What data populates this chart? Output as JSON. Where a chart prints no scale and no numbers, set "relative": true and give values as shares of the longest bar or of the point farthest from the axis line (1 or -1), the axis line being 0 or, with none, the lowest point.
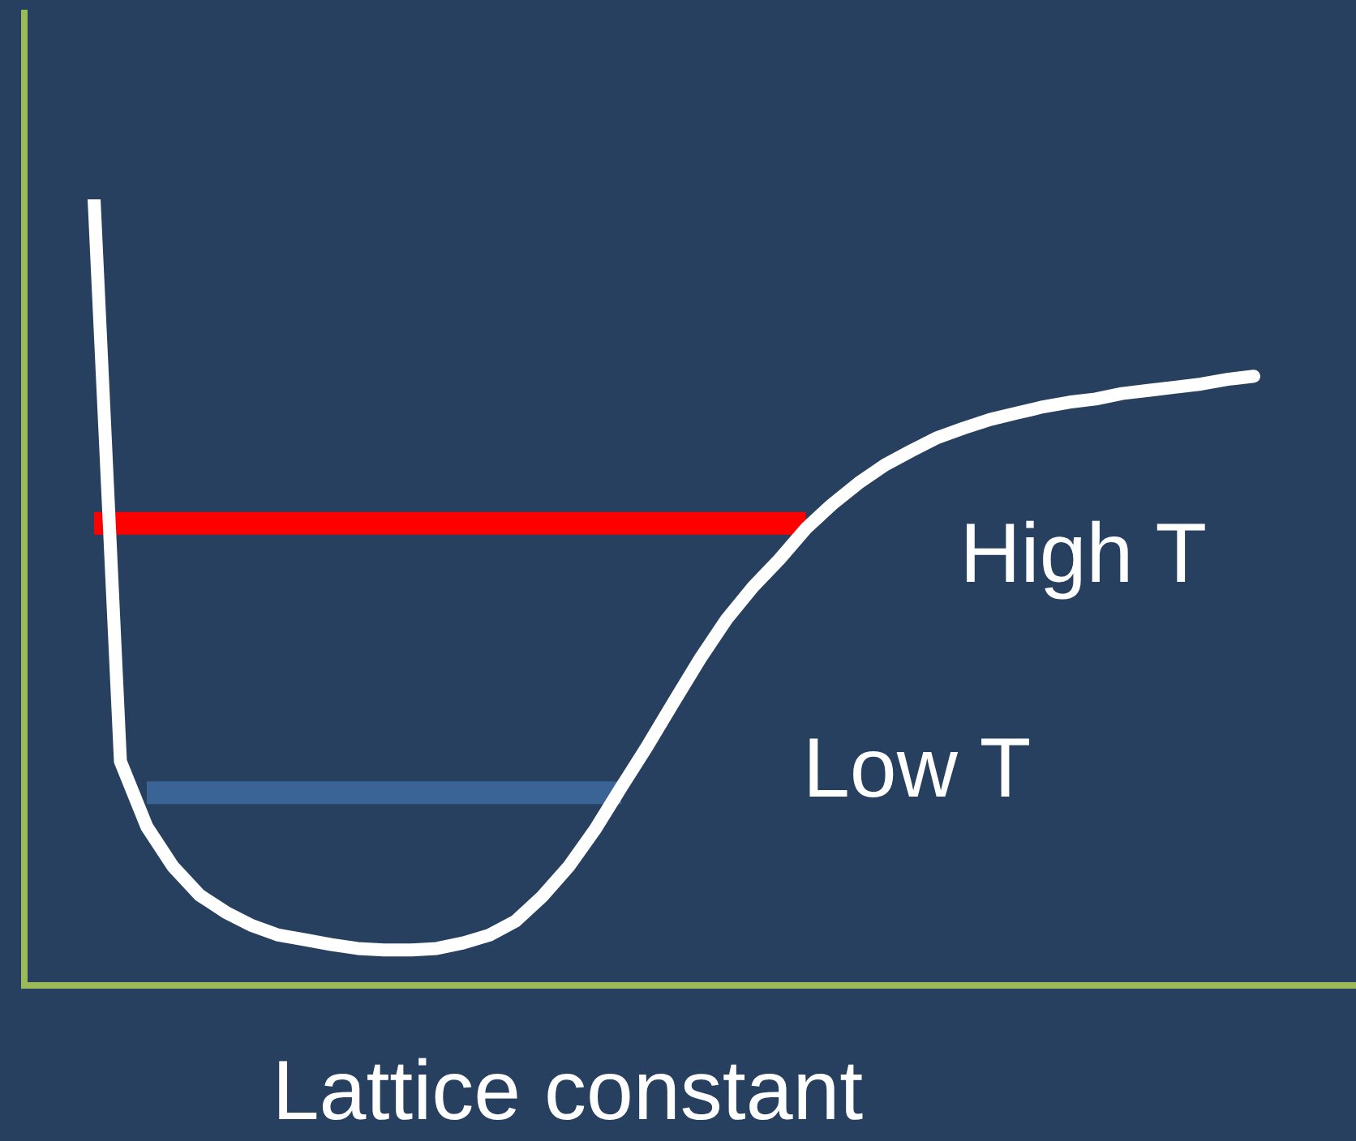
{
  "chart_data": {
    "type": "line",
    "relative": true,
    "xlabel": "Lattice constant",
    "categories": [
      null,
      null,
      null,
      null,
      null,
      null,
      null,
      null,
      null,
      null,
      null,
      null,
      null,
      null,
      null,
      null,
      null,
      null,
      null,
      null,
      null,
      null,
      null,
      null,
      null,
      null,
      null,
      null,
      null,
      null,
      null,
      null,
      null,
      null,
      null,
      null,
      null,
      null,
      null,
      null,
      null,
      null,
      null,
      null,
      null
    ],
    "series": [
      {
        "color": "#ffffff",
        "values": [
          1.0,
          0.285,
          0.202,
          0.151,
          0.115,
          0.093,
          0.076,
          0.064,
          0.058,
          0.052,
          0.047,
          0.045,
          0.045,
          0.047,
          0.054,
          0.064,
          0.082,
          0.113,
          0.151,
          0.198,
          0.252,
          0.305,
          0.361,
          0.416,
          0.466,
          0.507,
          0.542,
          0.581,
          0.612,
          0.639,
          0.662,
          0.68,
          0.697,
          0.709,
          0.72,
          0.728,
          0.736,
          0.742,
          0.746,
          0.753,
          0.757,
          0.761,
          0.765,
          0.771,
          0.775
        ]
      },
      {
        "name": "High T",
        "color": "#ff0000",
        "values": [
          0.588,
          0.588,
          0.588,
          0.588,
          0.588,
          0.588,
          0.588,
          0.588,
          0.588,
          0.588,
          0.588,
          0.588,
          0.588,
          0.588,
          0.588,
          0.588,
          0.588,
          0.588,
          0.588,
          0.588,
          0.588,
          0.588,
          0.588,
          0.588,
          0.588,
          0.588,
          0.588,
          0.588,
          null,
          null,
          null,
          null,
          null,
          null,
          null,
          null,
          null,
          null,
          null,
          null,
          null,
          null,
          null,
          null,
          null
        ]
      },
      {
        "name": "Low T",
        "color": "#3a6496",
        "values": [
          null,
          null,
          0.245,
          0.245,
          0.245,
          0.245,
          0.245,
          0.245,
          0.245,
          0.245,
          0.245,
          0.245,
          0.245,
          0.245,
          0.245,
          0.245,
          0.245,
          0.245,
          0.245,
          0.245,
          0.245,
          null,
          null,
          null,
          null,
          null,
          null,
          null,
          null,
          null,
          null,
          null,
          null,
          null,
          null,
          null,
          null,
          null,
          null,
          null,
          null,
          null,
          null,
          null,
          null
        ]
      }
    ],
    "marker": "none",
    "legend": false
  }
}
